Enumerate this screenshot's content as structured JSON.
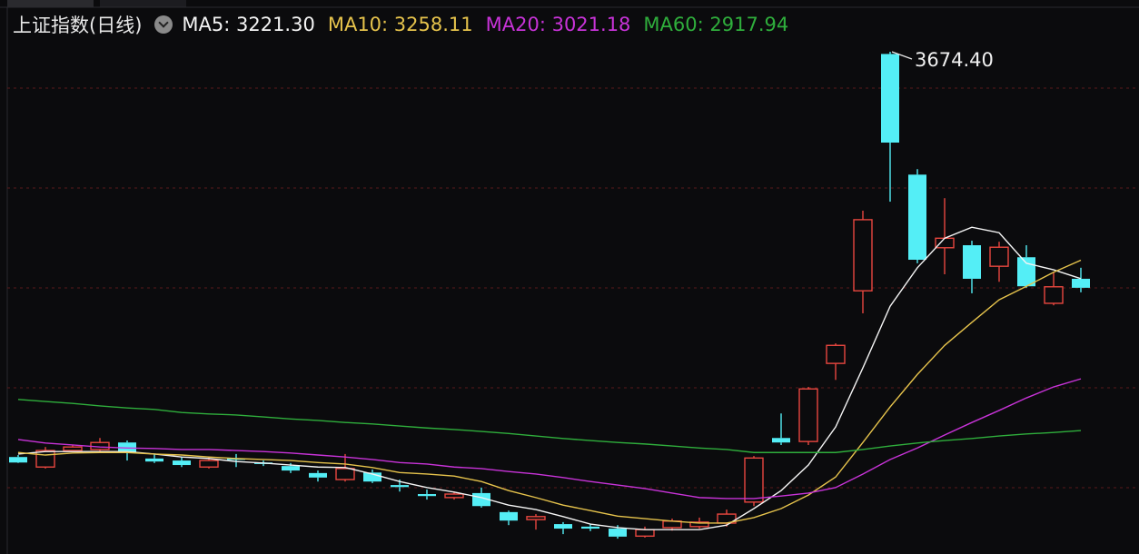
{
  "chart_data": {
    "type": "candlestick",
    "title": "上证指数(日线)",
    "annotation": "3674.40",
    "ylim": [
      2671.3,
      3777.8
    ],
    "background": "#0b0b0d",
    "candles": {
      "up_color": "#e8473f",
      "down_color": "#54eef6",
      "open": [
        2865,
        2845,
        2878,
        2880,
        2894,
        2862,
        2858,
        2845,
        2862,
        2854,
        2847,
        2833,
        2820,
        2834,
        2809,
        2791,
        2784,
        2793,
        2755,
        2740,
        2731,
        2726,
        2722,
        2707,
        2724,
        2726,
        2733,
        2775,
        2903,
        2896,
        3052,
        3197,
        3670,
        3429,
        3283,
        3288,
        3246,
        3264,
        3172,
        3221
      ],
      "high": [
        2869,
        2885,
        2889,
        2903,
        2898,
        2871,
        2865,
        2865,
        2871,
        2858,
        2853,
        2838,
        2871,
        2840,
        2820,
        2800,
        2796,
        2804,
        2758,
        2751,
        2735,
        2731,
        2729,
        2726,
        2742,
        2744,
        2760,
        2867,
        2952,
        3005,
        3092,
        3357,
        3674.4,
        3440,
        3382,
        3297,
        3295,
        3288,
        3234,
        3243
      ],
      "low": [
        2853,
        2842,
        2876,
        2876,
        2858,
        2853,
        2845,
        2842,
        2845,
        2847,
        2833,
        2816,
        2816,
        2813,
        2796,
        2780,
        2780,
        2764,
        2729,
        2720,
        2711,
        2717,
        2702,
        2704,
        2718,
        2722,
        2726,
        2767,
        2889,
        2889,
        3019,
        3152,
        3375,
        3252,
        3230,
        3192,
        3215,
        3203,
        3168,
        3194
      ],
      "close": [
        2854,
        2878,
        2885,
        2894,
        2874,
        2856,
        2849,
        2858,
        2860,
        2851,
        2838,
        2824,
        2842,
        2816,
        2805,
        2787,
        2791,
        2767,
        2738,
        2746,
        2722,
        2722,
        2706,
        2720,
        2737,
        2735,
        2751,
        2863,
        2894,
        3001,
        3088,
        3339,
        3493,
        3259,
        3302,
        3221,
        3284,
        3206,
        3205,
        3203
      ]
    },
    "series": [
      {
        "name": "MA5: 3221.30",
        "color": "#f4f4f4",
        "values": [
          2871,
          2876,
          2876,
          2876,
          2876,
          2871,
          2865,
          2862,
          2856,
          2853,
          2849,
          2845,
          2844,
          2831,
          2816,
          2804,
          2795,
          2784,
          2769,
          2760,
          2746,
          2731,
          2724,
          2720,
          2720,
          2720,
          2729,
          2762,
          2798,
          2849,
          2925,
          3043,
          3166,
          3243,
          3302,
          3324,
          3313,
          3252,
          3239,
          3221.3
        ]
      },
      {
        "name": "MA10: 3258.11",
        "color": "#e6c34c",
        "values": [
          2874,
          2869,
          2873,
          2874,
          2874,
          2871,
          2869,
          2865,
          2862,
          2860,
          2858,
          2854,
          2851,
          2844,
          2834,
          2831,
          2827,
          2816,
          2798,
          2784,
          2769,
          2758,
          2747,
          2742,
          2737,
          2733,
          2733,
          2744,
          2762,
          2789,
          2825,
          2894,
          2965,
          3030,
          3088,
          3134,
          3179,
          3206,
          3234,
          3258.11
        ]
      },
      {
        "name": "MA20: 3021.18",
        "color": "#c833d8",
        "values": [
          2900,
          2893,
          2889,
          2885,
          2883,
          2882,
          2880,
          2880,
          2878,
          2876,
          2873,
          2869,
          2865,
          2860,
          2854,
          2851,
          2845,
          2842,
          2836,
          2831,
          2824,
          2816,
          2809,
          2802,
          2793,
          2784,
          2782,
          2782,
          2787,
          2793,
          2804,
          2831,
          2860,
          2883,
          2909,
          2934,
          2958,
          2983,
          3005,
          3021.18
        ]
      },
      {
        "name": "MA60: 2917.94",
        "color": "#2fae3c",
        "values": [
          2980,
          2976,
          2972,
          2967,
          2963,
          2960,
          2954,
          2951,
          2949,
          2945,
          2941,
          2938,
          2934,
          2931,
          2927,
          2923,
          2920,
          2916,
          2912,
          2907,
          2902,
          2898,
          2894,
          2891,
          2887,
          2883,
          2880,
          2874,
          2874,
          2874,
          2874,
          2880,
          2887,
          2893,
          2898,
          2902,
          2907,
          2911,
          2914,
          2917.94
        ]
      }
    ]
  }
}
